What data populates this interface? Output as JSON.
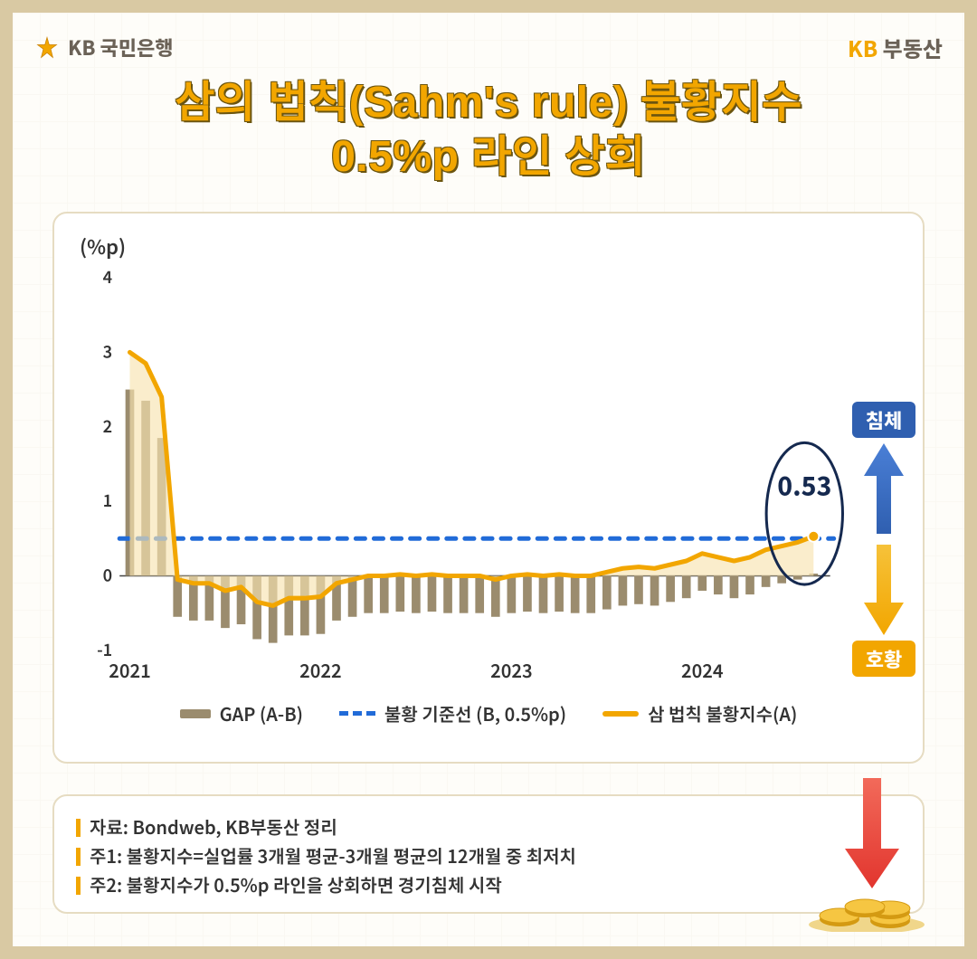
{
  "header": {
    "left_bank": "KB 국민은행",
    "right_brand_y": "KB",
    "right_brand_g": " 부동산"
  },
  "title": {
    "line1": "삼의 법칙(Sahm's rule) 불황지수",
    "line2": "0.5%p 라인 상회"
  },
  "chart": {
    "type": "bar+line+threshold",
    "y_axis_label": "(%p)",
    "ylim": [
      -1,
      4
    ],
    "yticks": [
      -1,
      0,
      1,
      2,
      3,
      4
    ],
    "x_year_labels": [
      "2021",
      "2022",
      "2023",
      "2024"
    ],
    "x_year_indices": [
      0,
      12,
      24,
      36
    ],
    "n_points": 44,
    "threshold_value": 0.5,
    "callout_value": "0.53",
    "callout_index": 43,
    "colors": {
      "bar": "#9b8c6e",
      "line": "#f2a600",
      "line_fill": "#f7e4b0",
      "threshold": "#216bd8",
      "axis": "#444444",
      "grid": "#e0e0e0",
      "bg": "#ffffff",
      "callout_ring": "#15294f"
    },
    "bar_width_ratio": 0.55,
    "line_width": 5,
    "threshold_dash": "10,10",
    "gap_values": [
      2.5,
      2.35,
      1.85,
      -0.55,
      -0.6,
      -0.6,
      -0.7,
      -0.65,
      -0.85,
      -0.9,
      -0.8,
      -0.8,
      -0.78,
      -0.6,
      -0.55,
      -0.5,
      -0.5,
      -0.48,
      -0.5,
      -0.48,
      -0.5,
      -0.5,
      -0.5,
      -0.55,
      -0.5,
      -0.48,
      -0.5,
      -0.48,
      -0.5,
      -0.5,
      -0.45,
      -0.4,
      -0.38,
      -0.4,
      -0.35,
      -0.3,
      -0.2,
      -0.25,
      -0.3,
      -0.25,
      -0.15,
      -0.1,
      -0.05,
      0.03
    ],
    "sahm_values": [
      3.0,
      2.85,
      2.4,
      -0.05,
      -0.1,
      -0.1,
      -0.2,
      -0.15,
      -0.35,
      -0.4,
      -0.3,
      -0.3,
      -0.28,
      -0.1,
      -0.05,
      0.0,
      0.0,
      0.02,
      0.0,
      0.02,
      0.0,
      0.0,
      0.0,
      -0.05,
      0.0,
      0.02,
      0.0,
      0.02,
      0.0,
      0.0,
      0.05,
      0.1,
      0.12,
      0.1,
      0.15,
      0.2,
      0.3,
      0.25,
      0.2,
      0.25,
      0.35,
      0.4,
      0.45,
      0.53
    ],
    "legend": {
      "gap": "GAP (A-B)",
      "threshold": "불황 기준선 (B, 0.5%p)",
      "sahm": "삼 법칙 불황지수(A)"
    }
  },
  "side": {
    "top_label": "침체",
    "bottom_label": "호황",
    "arrow_up_color": "#2f5fb0",
    "arrow_down_color": "#f2a600"
  },
  "footer": {
    "line1": "자료: Bondweb, KB부동산 정리",
    "line2": "주1: 불황지수=실업률 3개월 평균-3개월 평균의 12개월 중 최저치",
    "line3": "주2: 불황지수가 0.5%p 라인을 상회하면 경기침체 시작"
  },
  "deco": {
    "red_arrow_color": "#e2352e",
    "coin_fill": "#f6c642",
    "coin_edge": "#d49a12"
  }
}
